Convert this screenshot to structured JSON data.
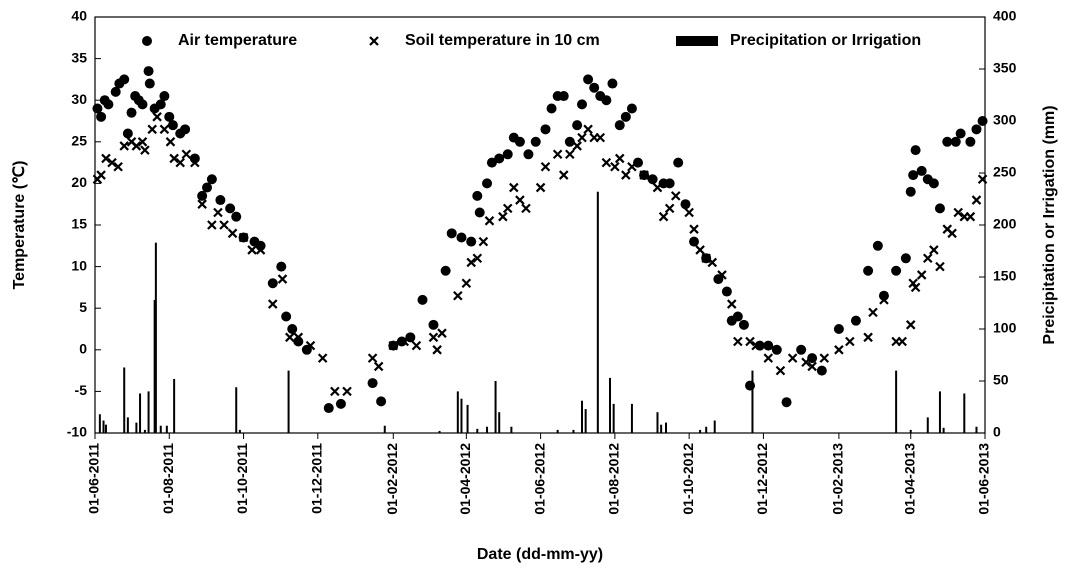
{
  "chart_data": {
    "type": "scatter",
    "x_label": "Date (dd-mm-yy)",
    "y_label": "Temperature (℃)",
    "y2_label": "Preicipitation or Irrigation (mm)",
    "xlim": [
      "2011-06-01",
      "2013-06-01"
    ],
    "xticks": [
      {
        "value": "2011-06-01",
        "label": "01-06-2011"
      },
      {
        "value": "2011-08-01",
        "label": "01-08-2011"
      },
      {
        "value": "2011-10-01",
        "label": "01-10-2011"
      },
      {
        "value": "2011-12-01",
        "label": "01-12-2011"
      },
      {
        "value": "2012-02-01",
        "label": "01-02-2012"
      },
      {
        "value": "2012-04-01",
        "label": "01-04-2012"
      },
      {
        "value": "2012-06-01",
        "label": "01-06-2012"
      },
      {
        "value": "2012-08-01",
        "label": "01-08-2012"
      },
      {
        "value": "2012-10-01",
        "label": "01-10-2012"
      },
      {
        "value": "2012-12-01",
        "label": "01-12-2012"
      },
      {
        "value": "2013-02-01",
        "label": "01-02-2013"
      },
      {
        "value": "2013-04-01",
        "label": "01-04-2013"
      },
      {
        "value": "2013-06-01",
        "label": "01-06-2013"
      }
    ],
    "ylim": [
      -10,
      40
    ],
    "yticks": [
      -10,
      -5,
      0,
      5,
      10,
      15,
      20,
      25,
      30,
      35,
      40
    ],
    "y2lim": [
      0,
      400
    ],
    "y2ticks": [
      0,
      50,
      100,
      150,
      200,
      250,
      300,
      350,
      400
    ],
    "legend": "top",
    "series": [
      {
        "name": "Air temperature",
        "type": "scatter",
        "marker": "circle",
        "color": "#000000",
        "x": [
          "2011-06-03",
          "2011-06-06",
          "2011-06-09",
          "2011-06-12",
          "2011-06-18",
          "2011-06-21",
          "2011-06-25",
          "2011-06-28",
          "2011-07-01",
          "2011-07-04",
          "2011-07-07",
          "2011-07-10",
          "2011-07-15",
          "2011-07-16",
          "2011-07-20",
          "2011-07-25",
          "2011-07-28",
          "2011-08-01",
          "2011-08-04",
          "2011-08-10",
          "2011-08-14",
          "2011-08-22",
          "2011-08-28",
          "2011-09-01",
          "2011-09-05",
          "2011-09-12",
          "2011-09-20",
          "2011-09-25",
          "2011-10-01",
          "2011-10-10",
          "2011-10-15",
          "2011-10-25",
          "2011-11-01",
          "2011-11-05",
          "2011-11-10",
          "2011-11-15",
          "2011-11-22",
          "2011-12-10",
          "2011-12-20",
          "2012-01-15",
          "2012-01-22",
          "2012-02-01",
          "2012-02-08",
          "2012-02-15",
          "2012-02-25",
          "2012-03-05",
          "2012-03-15",
          "2012-03-20",
          "2012-03-28",
          "2012-04-05",
          "2012-04-10",
          "2012-04-12",
          "2012-04-18",
          "2012-04-22",
          "2012-04-28",
          "2012-05-05",
          "2012-05-10",
          "2012-05-15",
          "2012-05-22",
          "2012-05-28",
          "2012-06-05",
          "2012-06-10",
          "2012-06-15",
          "2012-06-20",
          "2012-06-25",
          "2012-07-01",
          "2012-07-05",
          "2012-07-10",
          "2012-07-15",
          "2012-07-20",
          "2012-07-25",
          "2012-07-30",
          "2012-08-05",
          "2012-08-10",
          "2012-08-15",
          "2012-08-20",
          "2012-08-25",
          "2012-09-01",
          "2012-09-10",
          "2012-09-15",
          "2012-09-22",
          "2012-09-28",
          "2012-10-05",
          "2012-10-15",
          "2012-10-25",
          "2012-11-01",
          "2012-11-05",
          "2012-11-10",
          "2012-11-15",
          "2012-11-20",
          "2012-11-28",
          "2012-12-05",
          "2012-12-12",
          "2012-12-20",
          "2013-01-01",
          "2013-01-10",
          "2013-01-18",
          "2013-02-01",
          "2013-02-15",
          "2013-02-25",
          "2013-03-05",
          "2013-03-10",
          "2013-03-20",
          "2013-03-28",
          "2013-04-01",
          "2013-04-03",
          "2013-04-05",
          "2013-04-10",
          "2013-04-15",
          "2013-04-20",
          "2013-04-25",
          "2013-05-01",
          "2013-05-08",
          "2013-05-12",
          "2013-05-20",
          "2013-05-25",
          "2013-05-30"
        ],
        "values": [
          29,
          28,
          30,
          29.5,
          31,
          32,
          32.5,
          26,
          28.5,
          30.5,
          30,
          29.5,
          33.5,
          32,
          29,
          29.5,
          30.5,
          28,
          27,
          26,
          26.5,
          23,
          18.5,
          19.5,
          20.5,
          18,
          17,
          16,
          13.5,
          13,
          12.5,
          8,
          10,
          4,
          2.5,
          1,
          0,
          -7,
          -6.5,
          -4,
          -6.2,
          0.5,
          1,
          1.5,
          6,
          3,
          9.5,
          14,
          13.5,
          13,
          18.5,
          16.5,
          20,
          22.5,
          23,
          23.5,
          25.5,
          25,
          23.5,
          25,
          26.5,
          29,
          30.5,
          30.5,
          25,
          27,
          29.5,
          32.5,
          31.5,
          30.5,
          30,
          32,
          27,
          28,
          29,
          22.5,
          21,
          20.5,
          20,
          20,
          22.5,
          17.5,
          13,
          11,
          8.5,
          7,
          3.5,
          4,
          3,
          -4.3,
          0.5,
          0.5,
          0,
          -6.3,
          0,
          -1,
          -2.5,
          2.5,
          3.5,
          9.5,
          12.5,
          6.5,
          9.5,
          11,
          19,
          21,
          24,
          21.5,
          20.5,
          20,
          17,
          25,
          25,
          26,
          25,
          26.5,
          27.5
        ]
      },
      {
        "name": "Soil temperature in 10 cm",
        "type": "scatter",
        "marker": "cross",
        "color": "#000000",
        "x": [
          "2011-06-03",
          "2011-06-06",
          "2011-06-10",
          "2011-06-15",
          "2011-06-20",
          "2011-06-25",
          "2011-07-01",
          "2011-07-05",
          "2011-07-10",
          "2011-07-12",
          "2011-07-18",
          "2011-07-22",
          "2011-07-28",
          "2011-08-02",
          "2011-08-05",
          "2011-08-10",
          "2011-08-15",
          "2011-08-22",
          "2011-08-28",
          "2011-09-05",
          "2011-09-10",
          "2011-09-15",
          "2011-09-22",
          "2011-10-01",
          "2011-10-08",
          "2011-10-15",
          "2011-10-25",
          "2011-11-02",
          "2011-11-08",
          "2011-11-15",
          "2011-11-25",
          "2011-12-05",
          "2011-12-15",
          "2011-12-25",
          "2012-01-15",
          "2012-01-20",
          "2012-02-01",
          "2012-02-10",
          "2012-02-20",
          "2012-03-05",
          "2012-03-08",
          "2012-03-12",
          "2012-03-25",
          "2012-04-01",
          "2012-04-05",
          "2012-04-10",
          "2012-04-15",
          "2012-04-20",
          "2012-05-01",
          "2012-05-05",
          "2012-05-10",
          "2012-05-15",
          "2012-05-20",
          "2012-06-01",
          "2012-06-05",
          "2012-06-15",
          "2012-06-20",
          "2012-06-25",
          "2012-07-01",
          "2012-07-05",
          "2012-07-10",
          "2012-07-15",
          "2012-07-20",
          "2012-07-25",
          "2012-08-01",
          "2012-08-05",
          "2012-08-10",
          "2012-08-15",
          "2012-08-25",
          "2012-09-05",
          "2012-09-10",
          "2012-09-15",
          "2012-09-20",
          "2012-10-01",
          "2012-10-05",
          "2012-10-10",
          "2012-10-15",
          "2012-10-20",
          "2012-10-28",
          "2012-11-05",
          "2012-11-10",
          "2012-11-20",
          "2012-11-25",
          "2012-12-05",
          "2012-12-15",
          "2012-12-25",
          "2013-01-05",
          "2013-01-10",
          "2013-01-20",
          "2013-02-01",
          "2013-02-10",
          "2013-02-25",
          "2013-03-01",
          "2013-03-10",
          "2013-03-20",
          "2013-03-25",
          "2013-04-01",
          "2013-04-03",
          "2013-04-05",
          "2013-04-10",
          "2013-04-15",
          "2013-04-20",
          "2013-04-25",
          "2013-05-01",
          "2013-05-05",
          "2013-05-10",
          "2013-05-15",
          "2013-05-20",
          "2013-05-25",
          "2013-05-30"
        ],
        "values": [
          20.5,
          21,
          23,
          22.5,
          22,
          24.5,
          25,
          24.5,
          25,
          24,
          26.5,
          28,
          26.5,
          25,
          23,
          22.5,
          23.5,
          22.5,
          17.5,
          15,
          16.5,
          15,
          14,
          13.5,
          12,
          12,
          5.5,
          8.5,
          1.5,
          1.5,
          0.5,
          -1,
          -5,
          -5,
          -1,
          -2,
          0.5,
          1,
          0.5,
          1.5,
          0,
          2,
          6.5,
          8,
          10.5,
          11,
          13,
          15.5,
          16,
          17,
          19.5,
          18,
          17,
          19.5,
          22,
          23.5,
          21,
          23.5,
          24.5,
          25.5,
          26.5,
          25.5,
          25.5,
          22.5,
          22,
          23,
          21,
          22,
          21,
          19.5,
          16,
          17,
          18.5,
          16.5,
          14.5,
          12,
          11,
          10.5,
          9,
          5.5,
          1,
          1,
          0.5,
          -1,
          -2.5,
          -1,
          -1.5,
          -2,
          -1,
          0,
          1,
          1.5,
          4.5,
          6,
          1,
          1,
          3,
          8,
          7.5,
          9,
          11,
          12,
          10,
          14.5,
          14,
          16.5,
          16,
          16,
          18,
          20.5
        ]
      },
      {
        "name": "Precipitation or Irrigation",
        "type": "bar",
        "axis": "y2",
        "color": "#000000",
        "x": [
          "2011-06-05",
          "2011-06-08",
          "2011-06-10",
          "2011-06-25",
          "2011-06-28",
          "2011-07-05",
          "2011-07-08",
          "2011-07-12",
          "2011-07-15",
          "2011-07-20",
          "2011-07-21",
          "2011-07-25",
          "2011-07-30",
          "2011-08-05",
          "2011-09-25",
          "2011-09-28",
          "2011-11-07",
          "2012-01-25",
          "2012-03-10",
          "2012-03-25",
          "2012-03-28",
          "2012-04-02",
          "2012-04-10",
          "2012-04-18",
          "2012-04-25",
          "2012-04-28",
          "2012-05-08",
          "2012-06-15",
          "2012-06-28",
          "2012-07-05",
          "2012-07-08",
          "2012-07-18",
          "2012-07-28",
          "2012-07-31",
          "2012-08-15",
          "2012-09-05",
          "2012-09-08",
          "2012-09-12",
          "2012-10-10",
          "2012-10-15",
          "2012-10-22",
          "2012-11-22",
          "2013-03-20",
          "2013-04-01",
          "2013-04-15",
          "2013-04-25",
          "2013-04-28",
          "2013-05-15",
          "2013-05-25"
        ],
        "values": [
          18,
          12,
          8,
          63,
          15,
          10,
          38,
          3,
          40,
          128,
          183,
          7,
          7,
          52,
          44,
          3,
          60,
          7,
          2,
          40,
          33,
          27,
          4,
          6,
          50,
          20,
          6,
          3,
          3,
          31,
          23,
          232,
          53,
          28,
          28,
          20,
          8,
          10,
          3,
          6,
          12,
          60,
          60,
          3,
          15,
          40,
          5,
          38,
          6
        ]
      }
    ]
  }
}
